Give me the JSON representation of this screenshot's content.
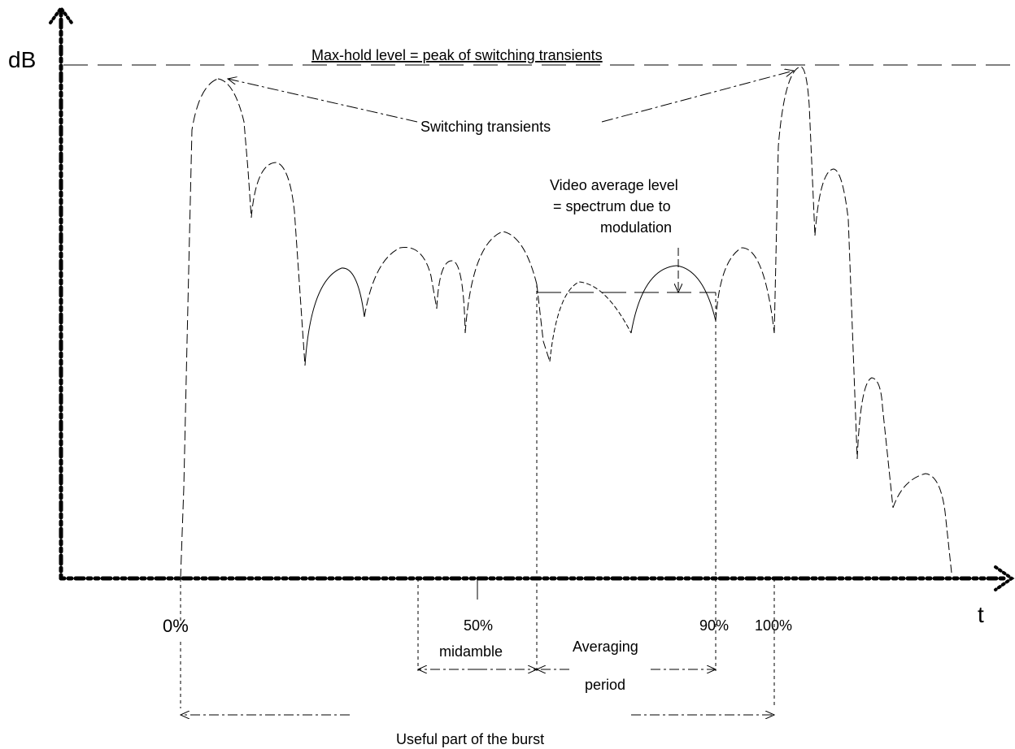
{
  "axes": {
    "y_label": "dB",
    "x_label": "t"
  },
  "annotations": {
    "max_hold": "Max-hold level = peak of switching transients",
    "switching": "Switching transients",
    "video_avg_1": "Video average level",
    "video_avg_2": "= spectrum due to",
    "video_avg_3": "modulation"
  },
  "ticks": {
    "t0": "0%",
    "t50": "50%",
    "t90": "90%",
    "t100": "100%"
  },
  "spans": {
    "midamble": "midamble",
    "averaging_1": "Averaging",
    "averaging_2": "period",
    "useful": "Useful part of the burst"
  }
}
